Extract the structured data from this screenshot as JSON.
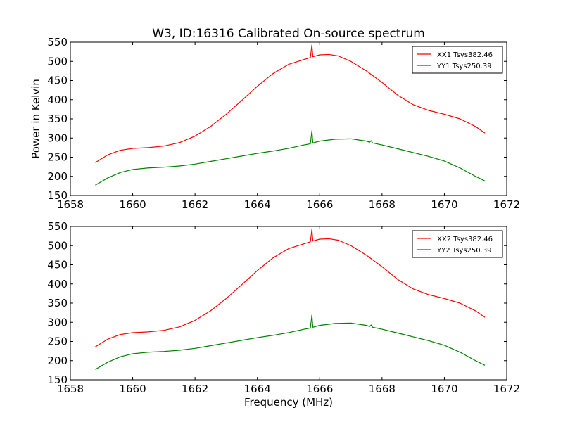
{
  "figure": {
    "title": "W3, ID:16316 Calibrated On-source spectrum"
  },
  "chart_data": [
    {
      "type": "line",
      "title": "W3, ID:16316 Calibrated On-source spectrum",
      "xlabel": "",
      "ylabel": "Power in Kelvin",
      "xlim": [
        1658,
        1672
      ],
      "ylim": [
        150,
        550
      ],
      "xticks": [
        1658,
        1660,
        1662,
        1664,
        1666,
        1668,
        1670,
        1672
      ],
      "yticks": [
        150,
        200,
        250,
        300,
        350,
        400,
        450,
        500,
        550
      ],
      "legend_position": "top-right",
      "grid": false,
      "series": [
        {
          "name": "XX1 Tsys382.46",
          "color": "#ff0000",
          "x": [
            1658.8,
            1659.2,
            1659.6,
            1660.0,
            1660.5,
            1661.0,
            1661.5,
            1662.0,
            1662.5,
            1663.0,
            1663.5,
            1664.0,
            1664.5,
            1665.0,
            1665.5,
            1665.7,
            1665.75,
            1665.78,
            1666.0,
            1666.3,
            1666.6,
            1667.0,
            1667.5,
            1668.0,
            1668.5,
            1669.0,
            1669.5,
            1670.0,
            1670.5,
            1671.0,
            1671.3
          ],
          "y": [
            236,
            256,
            268,
            273,
            275,
            279,
            288,
            305,
            330,
            362,
            398,
            435,
            468,
            492,
            505,
            510,
            543,
            512,
            517,
            518,
            514,
            500,
            475,
            445,
            412,
            387,
            372,
            362,
            350,
            330,
            313
          ]
        },
        {
          "name": "YY1 Tsys250.39",
          "color": "#008000",
          "x": [
            1658.8,
            1659.2,
            1659.6,
            1660.0,
            1660.5,
            1661.0,
            1661.5,
            1662.0,
            1662.5,
            1663.0,
            1663.5,
            1664.0,
            1664.5,
            1665.0,
            1665.5,
            1665.7,
            1665.75,
            1665.78,
            1666.0,
            1666.5,
            1667.0,
            1667.5,
            1667.6,
            1667.65,
            1667.7,
            1668.0,
            1668.5,
            1669.0,
            1669.5,
            1670.0,
            1670.5,
            1671.0,
            1671.3
          ],
          "y": [
            177,
            196,
            210,
            218,
            222,
            224,
            227,
            232,
            239,
            246,
            253,
            260,
            266,
            273,
            282,
            285,
            319,
            287,
            292,
            297,
            298,
            292,
            289,
            293,
            287,
            282,
            272,
            262,
            252,
            240,
            222,
            200,
            188
          ]
        }
      ]
    },
    {
      "type": "line",
      "title": "",
      "xlabel": "Frequency (MHz)",
      "ylabel": "",
      "xlim": [
        1658,
        1672
      ],
      "ylim": [
        150,
        550
      ],
      "xticks": [
        1658,
        1660,
        1662,
        1664,
        1666,
        1668,
        1670,
        1672
      ],
      "yticks": [
        150,
        200,
        250,
        300,
        350,
        400,
        450,
        500,
        550
      ],
      "legend_position": "top-right",
      "grid": false,
      "series": [
        {
          "name": "XX2 Tsys382.46",
          "color": "#ff0000",
          "x": [
            1658.8,
            1659.2,
            1659.6,
            1660.0,
            1660.5,
            1661.0,
            1661.5,
            1662.0,
            1662.5,
            1663.0,
            1663.5,
            1664.0,
            1664.5,
            1665.0,
            1665.5,
            1665.7,
            1665.75,
            1665.78,
            1666.0,
            1666.3,
            1666.6,
            1667.0,
            1667.5,
            1668.0,
            1668.5,
            1669.0,
            1669.5,
            1670.0,
            1670.5,
            1671.0,
            1671.3
          ],
          "y": [
            236,
            256,
            268,
            273,
            275,
            279,
            288,
            305,
            330,
            362,
            398,
            435,
            468,
            492,
            505,
            510,
            543,
            512,
            517,
            518,
            514,
            500,
            475,
            445,
            412,
            387,
            372,
            362,
            350,
            330,
            313
          ]
        },
        {
          "name": "YY2 Tsys250.39",
          "color": "#008000",
          "x": [
            1658.8,
            1659.2,
            1659.6,
            1660.0,
            1660.5,
            1661.0,
            1661.5,
            1662.0,
            1662.5,
            1663.0,
            1663.5,
            1664.0,
            1664.5,
            1665.0,
            1665.5,
            1665.7,
            1665.75,
            1665.78,
            1666.0,
            1666.5,
            1667.0,
            1667.5,
            1667.6,
            1667.65,
            1667.7,
            1668.0,
            1668.5,
            1669.0,
            1669.5,
            1670.0,
            1670.5,
            1671.0,
            1671.3
          ],
          "y": [
            177,
            196,
            210,
            218,
            222,
            224,
            227,
            232,
            239,
            246,
            253,
            260,
            266,
            273,
            282,
            285,
            319,
            287,
            292,
            297,
            298,
            292,
            289,
            293,
            287,
            282,
            272,
            262,
            252,
            240,
            222,
            200,
            188
          ]
        }
      ]
    }
  ]
}
